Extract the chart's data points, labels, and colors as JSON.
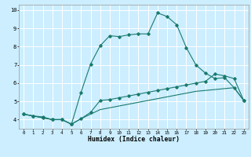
{
  "xlabel": "Humidex (Indice chaleur)",
  "bg_color": "#cceeff",
  "grid_color": "#ffffff",
  "line_color": "#1a7a6e",
  "xlim": [
    -0.5,
    23.5
  ],
  "ylim": [
    3.5,
    10.3
  ],
  "yticks": [
    4,
    5,
    6,
    7,
    8,
    9,
    10
  ],
  "xticks": [
    0,
    1,
    2,
    3,
    4,
    5,
    6,
    7,
    8,
    9,
    10,
    11,
    12,
    13,
    14,
    15,
    16,
    17,
    18,
    19,
    20,
    21,
    22,
    23
  ],
  "line1_x": [
    0,
    1,
    2,
    3,
    4,
    5,
    6,
    7,
    8,
    9,
    10,
    11,
    12,
    13,
    14,
    15,
    16,
    17,
    18,
    19,
    20,
    21,
    22,
    23
  ],
  "line1_y": [
    4.3,
    4.2,
    4.1,
    4.0,
    4.0,
    3.75,
    4.05,
    4.3,
    4.55,
    4.65,
    4.75,
    4.85,
    4.95,
    5.05,
    5.15,
    5.25,
    5.35,
    5.45,
    5.55,
    5.6,
    5.65,
    5.7,
    5.75,
    5.05
  ],
  "line2_x": [
    0,
    1,
    2,
    3,
    4,
    5,
    6,
    7,
    8,
    9,
    10,
    11,
    12,
    13,
    14,
    15,
    16,
    17,
    18,
    19,
    20,
    21,
    22,
    23
  ],
  "line2_y": [
    4.3,
    4.2,
    4.1,
    4.0,
    4.0,
    3.75,
    4.05,
    4.4,
    5.05,
    5.1,
    5.2,
    5.3,
    5.4,
    5.5,
    5.6,
    5.7,
    5.8,
    5.9,
    6.0,
    6.1,
    6.5,
    6.4,
    6.25,
    5.05
  ],
  "line3_x": [
    0,
    1,
    2,
    3,
    4,
    5,
    6,
    7,
    8,
    9,
    10,
    11,
    12,
    13,
    14,
    15,
    16,
    17,
    18,
    19,
    20,
    21,
    22,
    23
  ],
  "line3_y": [
    4.3,
    4.2,
    4.15,
    4.0,
    4.0,
    3.75,
    5.5,
    7.05,
    8.05,
    8.6,
    8.55,
    8.65,
    8.7,
    8.7,
    9.85,
    9.65,
    9.2,
    7.95,
    7.0,
    6.55,
    6.25,
    6.3,
    5.75,
    5.05
  ]
}
